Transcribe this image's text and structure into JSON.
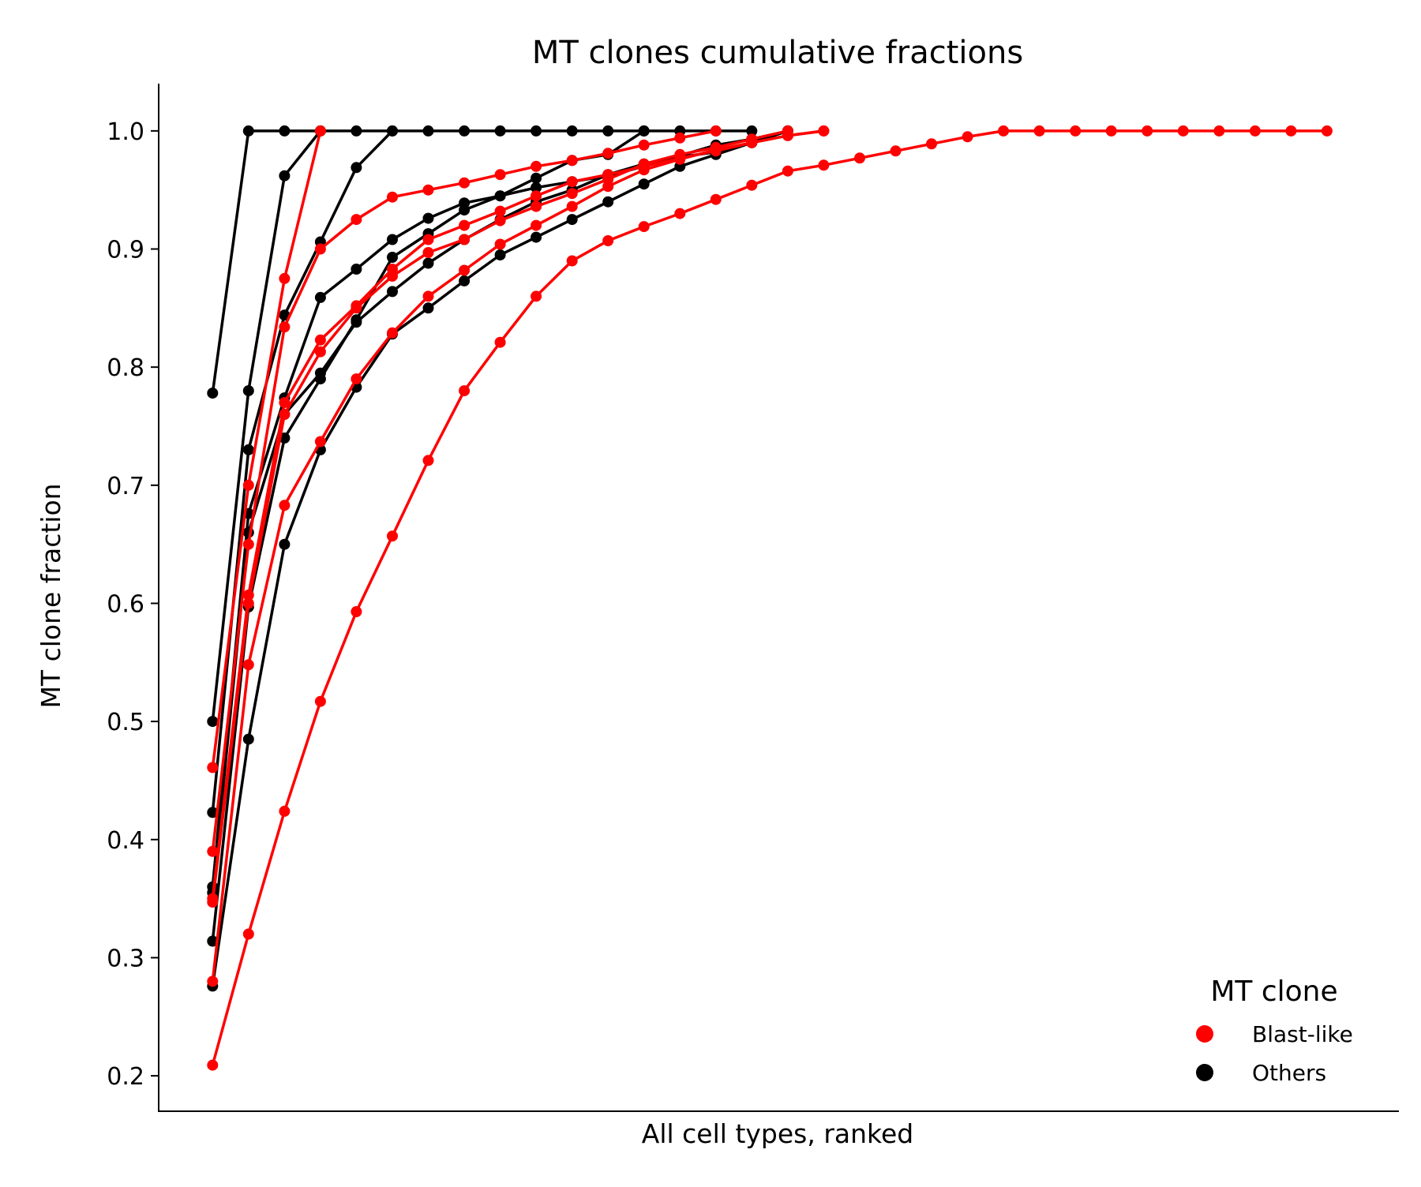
{
  "chart_data": {
    "type": "line",
    "title": "MT clones cumulative fractions",
    "xlabel": "All cell types, ranked",
    "ylabel": "MT clone fraction",
    "ylim": [
      0.17,
      1.04
    ],
    "xlim": [
      -1.5,
      33
    ],
    "yticks": [
      "0.2",
      "0.3",
      "0.4",
      "0.5",
      "0.6",
      "0.7",
      "0.8",
      "0.9",
      "1.0"
    ],
    "grid": false,
    "legend": {
      "title": "MT clone",
      "placement": "lower-right",
      "entries": [
        {
          "label": "Blast-like",
          "color": "#ff0000"
        },
        {
          "label": "Others",
          "color": "#000000"
        }
      ]
    },
    "series": [
      {
        "group": "Others",
        "values": [
          0.778,
          1.0,
          1.0,
          1.0,
          1.0,
          1.0,
          1.0,
          1.0,
          1.0,
          1.0,
          1.0,
          1.0,
          1.0,
          1.0,
          1.0,
          1.0
        ]
      },
      {
        "group": "Others",
        "values": [
          0.5,
          0.78,
          0.962,
          1.0
        ]
      },
      {
        "group": "Others",
        "values": [
          0.423,
          0.73,
          0.844,
          0.906,
          0.969,
          1.0
        ]
      },
      {
        "group": "Others",
        "values": [
          0.36,
          0.676,
          0.774,
          0.859,
          0.883,
          0.908,
          0.926,
          0.939,
          0.945,
          0.96,
          0.975,
          0.98,
          1.0
        ]
      },
      {
        "group": "Others",
        "values": [
          0.355,
          0.66,
          0.76,
          0.795,
          0.838,
          0.864,
          0.888,
          0.908,
          0.925,
          0.94,
          0.95,
          0.963,
          0.972,
          0.979,
          0.988,
          0.993,
          1.0
        ]
      },
      {
        "group": "Others",
        "values": [
          0.314,
          0.597,
          0.74,
          0.79,
          0.84,
          0.893,
          0.913,
          0.933,
          0.945,
          0.952,
          0.957,
          0.962,
          0.97,
          0.978,
          0.982,
          0.99,
          1.0
        ]
      },
      {
        "group": "Others",
        "values": [
          0.276,
          0.485,
          0.65,
          0.73,
          0.783,
          0.828,
          0.85,
          0.873,
          0.895,
          0.91,
          0.925,
          0.94,
          0.955,
          0.97,
          0.98,
          0.99,
          1.0
        ]
      },
      {
        "group": "Blast-like",
        "values": [
          0.461,
          0.7,
          0.875,
          1.0
        ]
      },
      {
        "group": "Blast-like",
        "values": [
          0.39,
          0.65,
          0.834,
          0.9,
          0.925,
          0.944,
          0.95,
          0.956,
          0.963,
          0.97,
          0.975,
          0.981,
          0.988,
          0.994,
          1.0
        ]
      },
      {
        "group": "Blast-like",
        "values": [
          0.35,
          0.607,
          0.77,
          0.823,
          0.852,
          0.883,
          0.908,
          0.92,
          0.932,
          0.945,
          0.957,
          0.963,
          0.97,
          0.977,
          0.983,
          0.99,
          0.996,
          1.0
        ]
      },
      {
        "group": "Blast-like",
        "values": [
          0.347,
          0.6,
          0.76,
          0.813,
          0.85,
          0.877,
          0.897,
          0.908,
          0.924,
          0.936,
          0.947,
          0.959,
          0.972,
          0.98,
          0.986,
          0.993,
          1.0
        ]
      },
      {
        "group": "Blast-like",
        "values": [
          0.28,
          0.548,
          0.683,
          0.737,
          0.79,
          0.829,
          0.86,
          0.882,
          0.904,
          0.92,
          0.936,
          0.953,
          0.967,
          0.976,
          0.984,
          0.99,
          0.996,
          1.0
        ]
      },
      {
        "group": "Blast-like",
        "values": [
          0.209,
          0.32,
          0.424,
          0.517,
          0.593,
          0.657,
          0.721,
          0.78,
          0.821,
          0.86,
          0.89,
          0.907,
          0.919,
          0.93,
          0.942,
          0.954,
          0.966,
          0.971,
          0.977,
          0.983,
          0.989,
          0.995,
          1.0,
          1.0,
          1.0,
          1.0,
          1.0,
          1.0,
          1.0,
          1.0,
          1.0,
          1.0
        ]
      }
    ]
  }
}
